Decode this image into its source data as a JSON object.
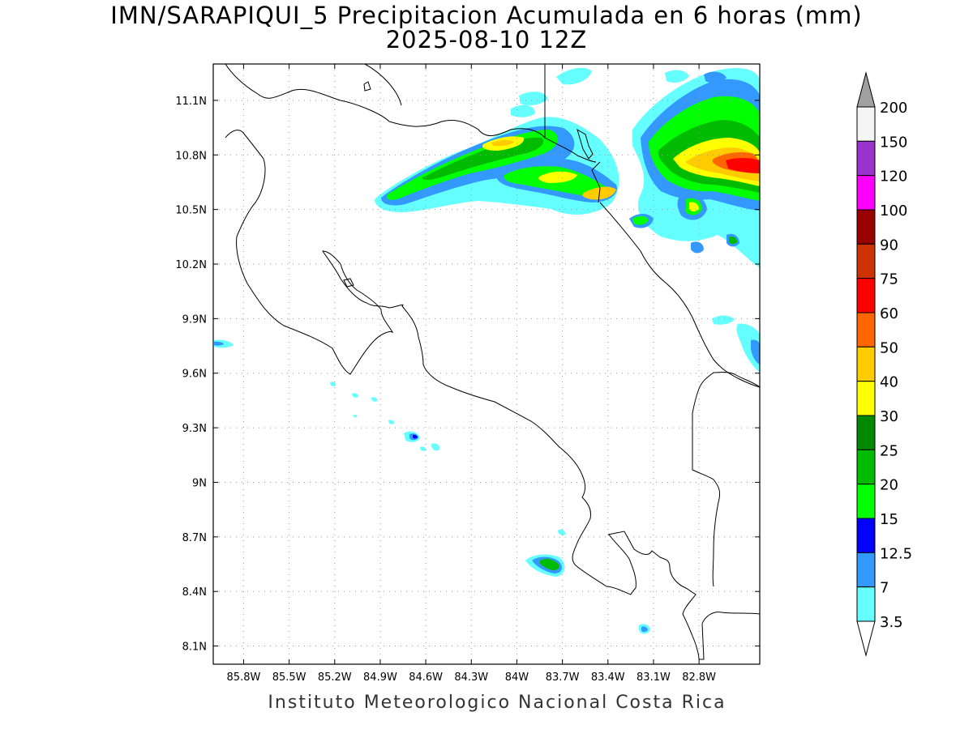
{
  "title": {
    "line1": "IMN/SARAPIQUI_5 Precipitacion Acumulada en 6 horas (mm)",
    "line2": "2025-08-10 12Z"
  },
  "footer": "Instituto Meteorologico Nacional Costa Rica",
  "map": {
    "lon_range": [
      -86.0,
      -82.4
    ],
    "lat_range": [
      8.0,
      11.3
    ],
    "lon_ticks": [
      "85.8W",
      "85.5W",
      "85.2W",
      "84.9W",
      "84.6W",
      "84.3W",
      "84W",
      "83.7W",
      "83.4W",
      "83.1W",
      "82.8W"
    ],
    "lat_ticks": [
      "11.1N",
      "10.8N",
      "10.5N",
      "10.2N",
      "9.9N",
      "9.6N",
      "9.3N",
      "9N",
      "8.7N",
      "8.4N",
      "8.1N"
    ],
    "grid": "dotted"
  },
  "colorbar": {
    "labels": [
      "200",
      "150",
      "120",
      "100",
      "90",
      "75",
      "60",
      "50",
      "40",
      "30",
      "25",
      "20",
      "15",
      "12.5",
      "7",
      "3.5"
    ],
    "colors": [
      "#f5f5f5",
      "#9933cc",
      "#ff00ff",
      "#990000",
      "#cc3300",
      "#ff0000",
      "#ff6600",
      "#ffcc00",
      "#ffff00",
      "#008800",
      "#00bb00",
      "#00ff00",
      "#0000ff",
      "#3399ff",
      "#66ffff"
    ],
    "top_cap_color": "#a0a0a0",
    "bottom_cap_color": "#ffffff"
  }
}
